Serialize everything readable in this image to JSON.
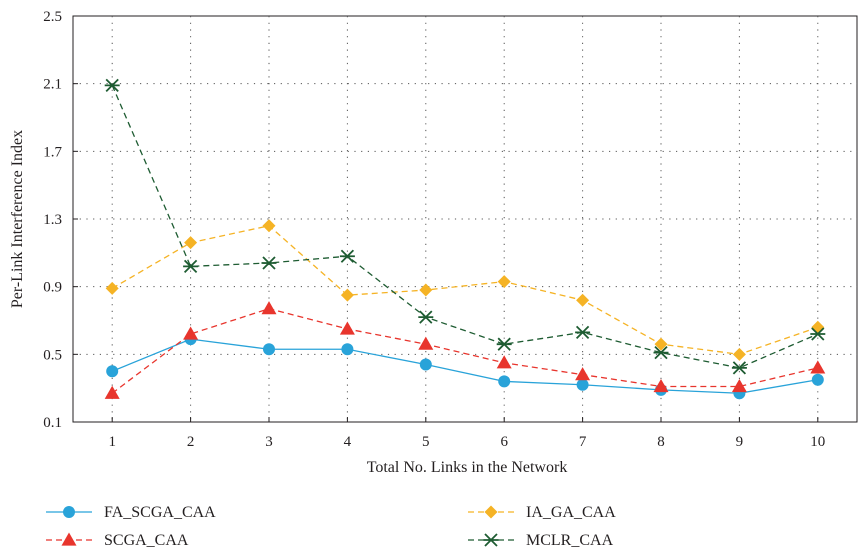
{
  "chart_data": {
    "type": "line",
    "title": "",
    "xlabel": "Total No. Links in the Network",
    "ylabel": "Per-Link Interference Index",
    "x": [
      1,
      2,
      3,
      4,
      5,
      6,
      7,
      8,
      9,
      10
    ],
    "xlim": [
      0.5,
      10.5
    ],
    "ylim": [
      0.1,
      2.5
    ],
    "x_ticks": [
      "1",
      "2",
      "3",
      "4",
      "5",
      "6",
      "7",
      "8",
      "9",
      "10"
    ],
    "y_ticks": [
      "0.1",
      "0.5",
      "0.9",
      "1.3",
      "1.7",
      "2.1",
      "2.5"
    ],
    "grid": true,
    "legend_position": "bottom",
    "series": [
      {
        "name": "FA_SCGA_CAA",
        "color": "#29a3d9",
        "dash": "solid",
        "marker": "circle",
        "values": [
          0.4,
          0.59,
          0.53,
          0.53,
          0.44,
          0.34,
          0.32,
          0.29,
          0.27,
          0.35
        ]
      },
      {
        "name": "SCGA_CAA",
        "color": "#e8352d",
        "dash": "dashed",
        "marker": "triangle",
        "values": [
          0.27,
          0.62,
          0.77,
          0.65,
          0.56,
          0.45,
          0.38,
          0.31,
          0.31,
          0.42
        ]
      },
      {
        "name": "IA_GA_CAA",
        "color": "#f5b325",
        "dash": "dashed",
        "marker": "diamond",
        "values": [
          0.89,
          1.16,
          1.26,
          0.85,
          0.88,
          0.93,
          0.82,
          0.56,
          0.5,
          0.66
        ]
      },
      {
        "name": "MCLR_CAA",
        "color": "#1e5c32",
        "dash": "dashed",
        "marker": "asterisk",
        "values": [
          2.09,
          1.02,
          1.04,
          1.08,
          0.72,
          0.56,
          0.63,
          0.51,
          0.42,
          0.62
        ]
      }
    ]
  }
}
